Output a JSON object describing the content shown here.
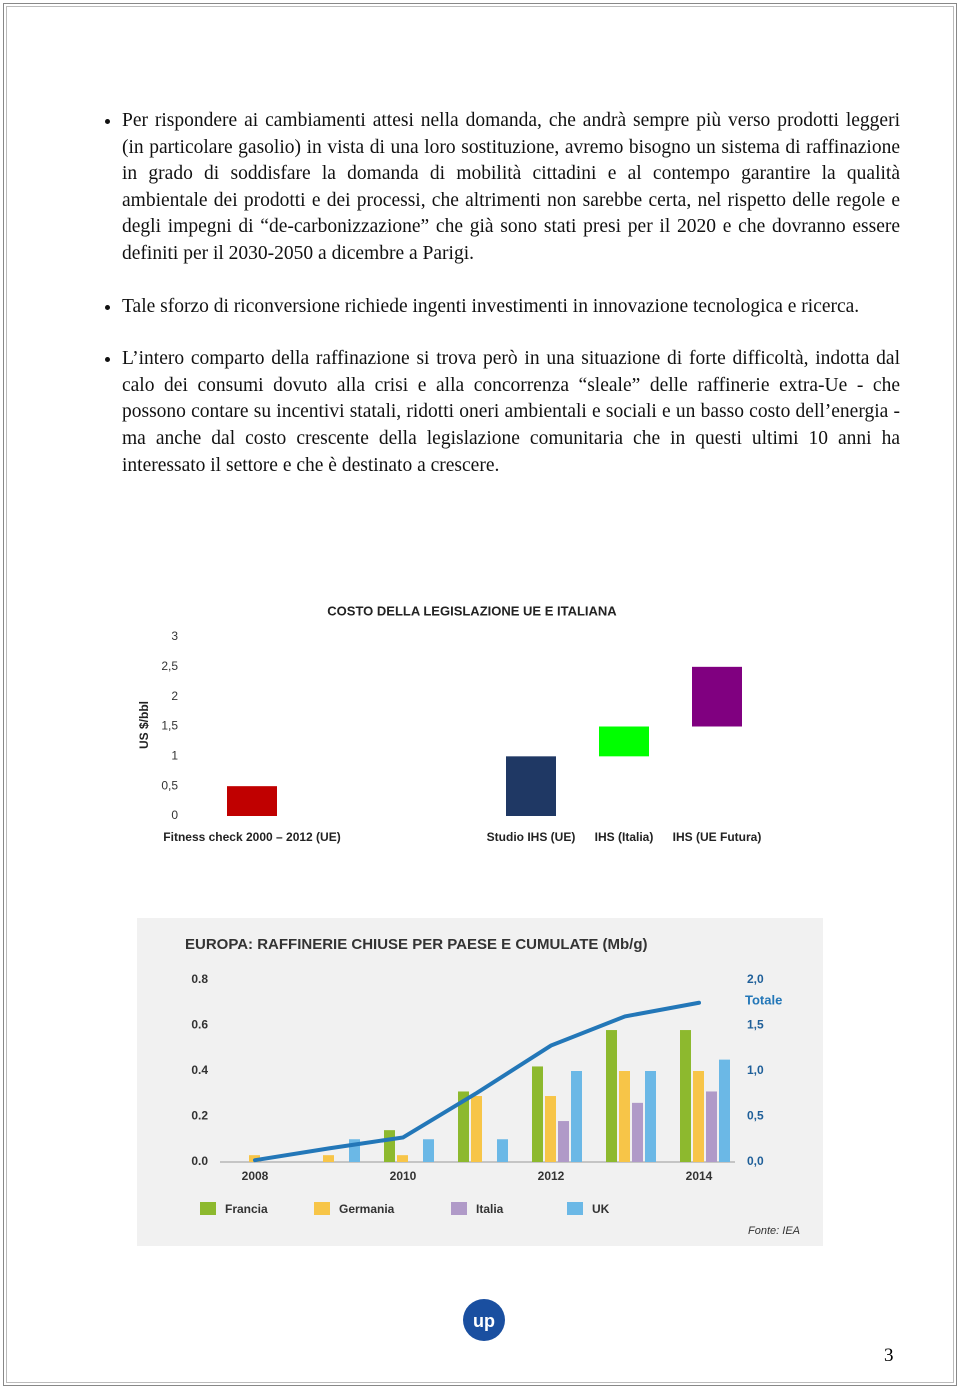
{
  "paragraphs": [
    "Per rispondere ai cambiamenti attesi nella domanda, che andrà sempre più verso prodotti leggeri (in particolare gasolio) in vista di una loro sostituzione, avremo bisogno un sistema di raffinazione in grado di soddisfare la domanda di mobilità cittadini e al contempo garantire la qualità ambientale dei prodotti e dei processi, che altrimenti non sarebbe certa, nel rispetto delle regole e degli impegni di “de-carbonizzazione” che già sono stati presi per il 2020 e che dovranno essere definiti per il 2030-2050 a dicembre a Parigi.",
    "Tale sforzo di riconversione richiede ingenti investimenti in innovazione tecnologica e ricerca.",
    "L’intero comparto della raffinazione si trova però in una situazione di forte difficoltà, indotta dal calo dei consumi dovuto alla crisi e alla concorrenza “sleale” delle raffinerie extra-Ue - che possono contare su incentivi statali, ridotti oneri ambientali e sociali e un basso costo dell’energia - ma anche dal costo crescente della legislazione comunitaria che in questi ultimi 10 anni ha interessato il settore e che è destinato a crescere."
  ],
  "chart_data": [
    {
      "type": "floating-bar",
      "title": "COSTO DELLA LEGISLAZIONE UE E ITALIANA",
      "ylabel": "US $/bbl",
      "categories": [
        "Fitness check 2000 – 2012 (UE)",
        null,
        null,
        "Studio IHS (UE)",
        "IHS (Italia)",
        "IHS (UE Futura)"
      ],
      "low": [
        0,
        null,
        null,
        0,
        1,
        1.5
      ],
      "high": [
        0.5,
        null,
        null,
        1,
        1.5,
        2.5
      ],
      "colors": [
        "#c00000",
        null,
        null,
        "#1f3864",
        "#00ff00",
        "#800080"
      ],
      "ylim": [
        0,
        3
      ],
      "yticks": [
        0,
        {
          "value": 0.5,
          "label": "0,5"
        },
        1,
        {
          "value": 1.5,
          "label": "1,5"
        },
        2,
        {
          "value": 2.5,
          "label": "2,5"
        },
        3
      ]
    },
    {
      "type": "bar",
      "title": "EUROPA: RAFFINERIE CHIUSE PER PAESE E CUMULATE (Mb/g)",
      "source": "Fonte: IEA",
      "categories": [
        "2008",
        null,
        "2010",
        null,
        "2012",
        null,
        "2014"
      ],
      "series": [
        {
          "name": "Francia",
          "color": "#8db92e",
          "values": [
            null,
            null,
            0.14,
            0.31,
            0.42,
            0.58,
            0.58
          ]
        },
        {
          "name": "Germania",
          "color": "#f7c548",
          "values": [
            0.03,
            0.03,
            0.03,
            0.29,
            0.29,
            0.4,
            0.4
          ]
        },
        {
          "name": "Italia",
          "color": "#b09ac8",
          "values": [
            null,
            null,
            null,
            null,
            0.18,
            0.26,
            0.31
          ]
        },
        {
          "name": "UK",
          "color": "#6bb8e6",
          "values": [
            null,
            0.1,
            0.1,
            0.1,
            0.4,
            0.4,
            0.45
          ]
        },
        {
          "name": "Totale",
          "type": "line",
          "axis": "y2",
          "color": "#2377b8",
          "values": [
            0.02,
            0.15,
            0.27,
            0.76,
            1.28,
            1.6,
            1.75
          ]
        }
      ],
      "ylim": [
        0,
        0.8
      ],
      "yticks": [
        {
          "value": 0,
          "label": "0.0"
        },
        0.2,
        0.4,
        0.6,
        0.8
      ],
      "y2lim": [
        0,
        2
      ],
      "y2ticks": [
        {
          "value": 0,
          "label": "0,0"
        },
        {
          "value": 0.5,
          "label": "0,5"
        },
        {
          "value": 1,
          "label": "1,0"
        },
        {
          "value": 1.5,
          "label": "1,5"
        },
        {
          "value": 2,
          "label": "2,0"
        }
      ]
    }
  ],
  "footer": {
    "logo": "up",
    "page": "3"
  }
}
